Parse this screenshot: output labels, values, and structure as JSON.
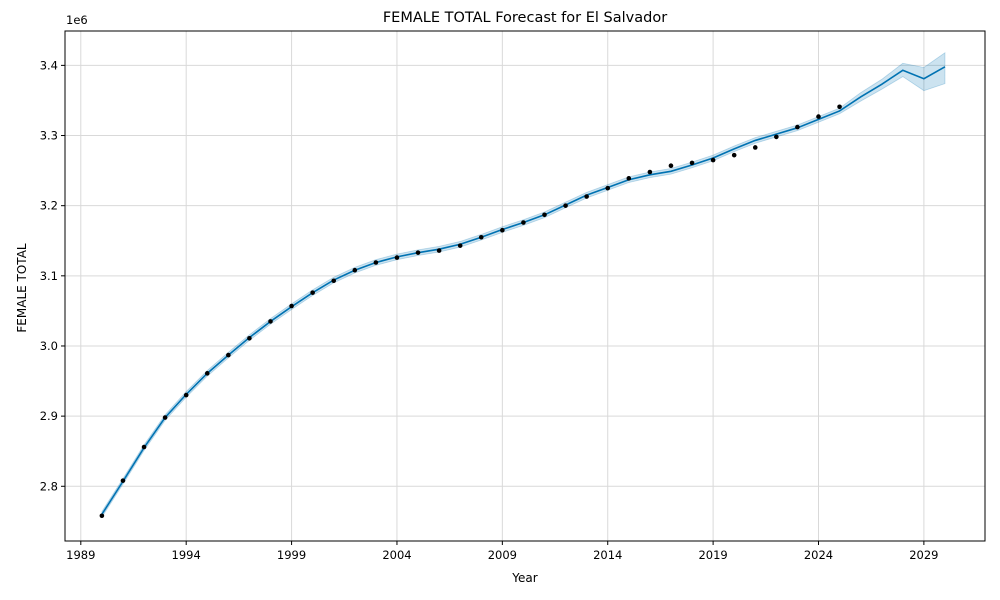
{
  "chart_data": {
    "type": "line",
    "title": "FEMALE TOTAL Forecast for El Salvador",
    "xlabel": "Year",
    "ylabel": "FEMALE TOTAL",
    "y_offset_label": "1e6",
    "xlim": [
      1988.25,
      2031.9
    ],
    "ylim": [
      2.722,
      3.449
    ],
    "x_ticks": [
      1989,
      1994,
      1999,
      2004,
      2009,
      2014,
      2019,
      2024,
      2029
    ],
    "x_tick_labels": [
      "1989",
      "1994",
      "1999",
      "2004",
      "2009",
      "2014",
      "2019",
      "2024",
      "2029"
    ],
    "y_ticks": [
      2.8,
      2.9,
      3.0,
      3.1,
      3.2,
      3.3,
      3.4
    ],
    "y_tick_labels": [
      "2.8",
      "2.9",
      "3.0",
      "3.1",
      "3.2",
      "3.3",
      "3.4"
    ],
    "grid": true,
    "colors": {
      "forecast": "#0072B2",
      "interval": "#0072B2",
      "observed": "#000000",
      "grid": "#d9d9d9"
    },
    "observed": {
      "x": [
        1990,
        1991,
        1992,
        1993,
        1994,
        1995,
        1996,
        1997,
        1998,
        1999,
        2000,
        2001,
        2002,
        2003,
        2004,
        2005,
        2006,
        2007,
        2008,
        2009,
        2010,
        2011,
        2012,
        2013,
        2014,
        2015,
        2016,
        2017,
        2018,
        2019,
        2020,
        2021,
        2022,
        2023,
        2024,
        2025
      ],
      "y": [
        2.758,
        2.808,
        2.856,
        2.898,
        2.93,
        2.961,
        2.987,
        3.011,
        3.035,
        3.057,
        3.076,
        3.093,
        3.108,
        3.119,
        3.126,
        3.133,
        3.136,
        3.143,
        3.155,
        3.165,
        3.176,
        3.187,
        3.2,
        3.213,
        3.225,
        3.239,
        3.248,
        3.257,
        3.261,
        3.265,
        3.272,
        3.283,
        3.298,
        3.312,
        3.327,
        3.341
      ]
    },
    "forecast": {
      "x": [
        1990,
        1991,
        1992,
        1993,
        1994,
        1995,
        1996,
        1997,
        1998,
        1999,
        2000,
        2001,
        2002,
        2003,
        2004,
        2005,
        2006,
        2007,
        2008,
        2009,
        2010,
        2011,
        2012,
        2013,
        2014,
        2015,
        2016,
        2017,
        2018,
        2019,
        2020,
        2021,
        2022,
        2023,
        2024,
        2025,
        2026,
        2027,
        2028,
        2029,
        2030
      ],
      "yhat": [
        2.76,
        2.807,
        2.855,
        2.898,
        2.931,
        2.961,
        2.987,
        3.012,
        3.035,
        3.056,
        3.076,
        3.094,
        3.108,
        3.119,
        3.127,
        3.133,
        3.138,
        3.145,
        3.155,
        3.166,
        3.176,
        3.187,
        3.201,
        3.215,
        3.226,
        3.237,
        3.244,
        3.249,
        3.258,
        3.268,
        3.281,
        3.293,
        3.302,
        3.311,
        3.323,
        3.335,
        3.355,
        3.373,
        3.393,
        3.381,
        3.398
      ],
      "lower": [
        2.756,
        2.803,
        2.851,
        2.894,
        2.927,
        2.957,
        2.983,
        3.008,
        3.031,
        3.052,
        3.072,
        3.09,
        3.104,
        3.115,
        3.123,
        3.129,
        3.134,
        3.141,
        3.151,
        3.162,
        3.172,
        3.183,
        3.197,
        3.211,
        3.222,
        3.233,
        3.24,
        3.245,
        3.254,
        3.264,
        3.277,
        3.289,
        3.298,
        3.307,
        3.319,
        3.331,
        3.349,
        3.366,
        3.384,
        3.364,
        3.374
      ],
      "upper": [
        2.764,
        2.811,
        2.859,
        2.902,
        2.935,
        2.965,
        2.991,
        3.016,
        3.039,
        3.06,
        3.08,
        3.098,
        3.112,
        3.123,
        3.131,
        3.137,
        3.142,
        3.149,
        3.159,
        3.17,
        3.18,
        3.191,
        3.205,
        3.219,
        3.23,
        3.241,
        3.248,
        3.253,
        3.262,
        3.272,
        3.285,
        3.297,
        3.306,
        3.315,
        3.327,
        3.339,
        3.361,
        3.38,
        3.403,
        3.397,
        3.418
      ]
    }
  }
}
